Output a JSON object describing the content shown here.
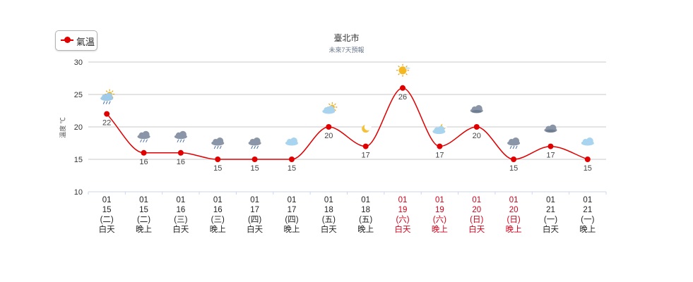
{
  "legend": {
    "label": "氣溫",
    "color": "#e00000"
  },
  "chart_title": "臺北市",
  "chart_subtitle": "未來7天預報",
  "chart_data": {
    "type": "line",
    "ylabel": "溫度 ℃",
    "ylim": [
      10,
      30
    ],
    "yticks": [
      10,
      15,
      20,
      25,
      30
    ],
    "grid": true,
    "legend_position": "top-left",
    "series": [
      {
        "name": "氣溫",
        "color": "#e00000",
        "values": [
          22,
          16,
          16,
          15,
          15,
          15,
          20,
          17,
          26,
          17,
          20,
          15,
          17,
          15
        ]
      }
    ],
    "categories": [
      {
        "month": "01",
        "day": "15",
        "weekday": "(二)",
        "period": "白天",
        "weekend": false,
        "icon": "partly-cloudy-rain-icon"
      },
      {
        "month": "01",
        "day": "15",
        "weekday": "(二)",
        "period": "晚上",
        "weekend": false,
        "icon": "cloudy-rain-icon"
      },
      {
        "month": "01",
        "day": "16",
        "weekday": "(三)",
        "period": "白天",
        "weekend": false,
        "icon": "cloudy-rain-icon"
      },
      {
        "month": "01",
        "day": "16",
        "weekday": "(三)",
        "period": "晚上",
        "weekend": false,
        "icon": "cloudy-rain-icon"
      },
      {
        "month": "01",
        "day": "17",
        "weekday": "(四)",
        "period": "白天",
        "weekend": false,
        "icon": "cloudy-rain-icon"
      },
      {
        "month": "01",
        "day": "17",
        "weekday": "(四)",
        "period": "晚上",
        "weekend": false,
        "icon": "cloudy-icon"
      },
      {
        "month": "01",
        "day": "18",
        "weekday": "(五)",
        "period": "白天",
        "weekend": false,
        "icon": "partly-cloudy-icon"
      },
      {
        "month": "01",
        "day": "18",
        "weekday": "(五)",
        "period": "晚上",
        "weekend": false,
        "icon": "moon-icon"
      },
      {
        "month": "01",
        "day": "19",
        "weekday": "(六)",
        "period": "白天",
        "weekend": true,
        "icon": "sunny-icon"
      },
      {
        "month": "01",
        "day": "19",
        "weekday": "(六)",
        "period": "晚上",
        "weekend": true,
        "icon": "partly-cloudy-night-icon"
      },
      {
        "month": "01",
        "day": "20",
        "weekday": "(日)",
        "period": "白天",
        "weekend": true,
        "icon": "overcast-icon"
      },
      {
        "month": "01",
        "day": "20",
        "weekday": "(日)",
        "period": "晚上",
        "weekend": true,
        "icon": "cloudy-rain-icon"
      },
      {
        "month": "01",
        "day": "21",
        "weekday": "(一)",
        "period": "白天",
        "weekend": false,
        "icon": "overcast-icon"
      },
      {
        "month": "01",
        "day": "21",
        "weekday": "(一)",
        "period": "晚上",
        "weekend": false,
        "icon": "cloudy-icon"
      }
    ],
    "colors": {
      "line": "#e00000",
      "grid": "#c8c8c8",
      "axis": "#ccd6eb",
      "weekend_text": "#d0021b",
      "weekday_text": "#222222"
    }
  }
}
